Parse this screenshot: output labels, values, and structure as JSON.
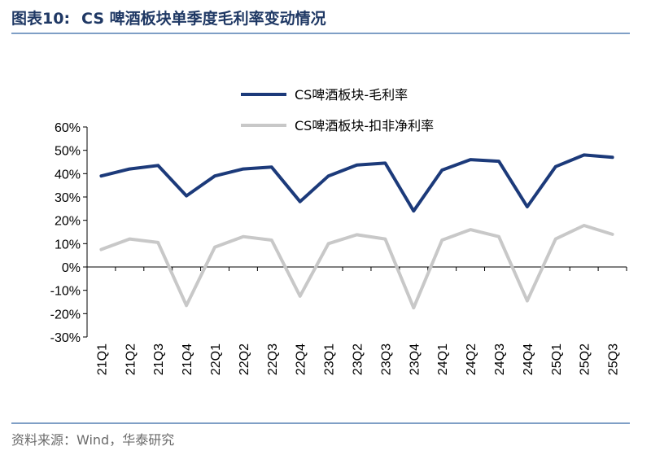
{
  "header": {
    "figure_number": "图表10:",
    "title": "CS 啤酒板块单季度毛利率变动情况"
  },
  "source": "资料来源：Wind，华泰研究",
  "colors": {
    "series_gross": "#1c3a7a",
    "series_net": "#c8c8c8",
    "rule": "#7f9fc6",
    "title": "#1f3864"
  },
  "chart_data": {
    "type": "line",
    "categories": [
      "21Q1",
      "21Q2",
      "21Q3",
      "21Q4",
      "22Q1",
      "22Q2",
      "22Q3",
      "22Q4",
      "23Q1",
      "23Q2",
      "23Q3",
      "23Q4",
      "24Q1",
      "24Q2",
      "24Q3",
      "24Q4",
      "25Q1",
      "25Q2",
      "25Q3"
    ],
    "series": [
      {
        "name": "CS啤酒板块-毛利率",
        "color": "#1c3a7a",
        "values": [
          39.0,
          42.0,
          43.5,
          30.5,
          39.0,
          42.0,
          42.8,
          28.0,
          39.0,
          43.7,
          44.5,
          24.0,
          41.5,
          46.0,
          45.3,
          25.8,
          43.0,
          48.0,
          47.0
        ]
      },
      {
        "name": "CS啤酒板块-扣非净利率",
        "color": "#c8c8c8",
        "values": [
          7.5,
          12.0,
          10.5,
          -16.5,
          8.5,
          13.0,
          11.5,
          -12.5,
          10.0,
          13.8,
          12.0,
          -17.5,
          11.5,
          16.0,
          13.0,
          -14.5,
          12.0,
          17.8,
          14.0
        ]
      }
    ],
    "yticks": [
      "-30%",
      "-20%",
      "-10%",
      "0%",
      "10%",
      "20%",
      "30%",
      "40%",
      "50%",
      "60%"
    ],
    "ylim": [
      -30,
      60
    ],
    "legend_position": "top-right",
    "grid": false
  }
}
